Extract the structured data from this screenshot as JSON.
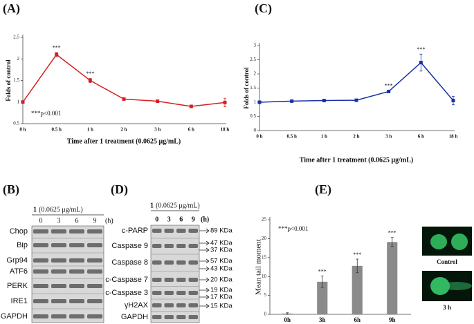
{
  "panel_labels": [
    "(A)",
    "(C)",
    "(B)",
    "(D)",
    "(E)"
  ],
  "chart_data": [
    {
      "type": "line",
      "color": "#d42020",
      "ylabel": "Folds of control",
      "xlabel": "Time after 1 treatment (0.0625 μg/mL)",
      "categories": [
        "0 h",
        "0.5 h",
        "1 h",
        "2 h",
        "3 h",
        "6 h",
        "18 h"
      ],
      "values": [
        1,
        2.1,
        1.5,
        1.07,
        1.02,
        0.9,
        0.99
      ],
      "errors": [
        0.03,
        0.05,
        0.05,
        0.02,
        0.02,
        0.02,
        0.1
      ],
      "ylim": [
        0.5,
        2.5
      ],
      "yticks": [
        0.5,
        1,
        1.5,
        2,
        2.5
      ],
      "annotations": [
        {
          "x": "0.5 h",
          "text": "***"
        },
        {
          "x": "1 h",
          "text": "***"
        }
      ],
      "note": "***p<0.001"
    },
    {
      "type": "line",
      "color": "#1a2fa8",
      "ylabel": "Folds of control",
      "xlabel": "Time after 1 treatment (0.0625 μg/mL)",
      "categories": [
        "0 h",
        "0.5 h",
        "1 h",
        "2 h",
        "3 h",
        "6 h",
        "18 h"
      ],
      "values": [
        1,
        1.04,
        1.06,
        1.07,
        1.38,
        2.4,
        1.06
      ],
      "errors": [
        0.02,
        0.03,
        0.04,
        0.02,
        0.04,
        0.3,
        0.15
      ],
      "ylim": [
        0,
        3
      ],
      "yticks": [
        0,
        0.5,
        1,
        1.5,
        2,
        2.5,
        3
      ],
      "annotations": [
        {
          "x": "3 h",
          "text": "***"
        },
        {
          "x": "6 h",
          "text": "***"
        }
      ]
    },
    {
      "type": "bar",
      "color": "#8a8a8a",
      "ylabel": "Mean tail moment",
      "categories": [
        "0h",
        "3h",
        "6h",
        "9h"
      ],
      "values": [
        0.2,
        8.6,
        12.8,
        19.1
      ],
      "errors": [
        0.2,
        1.5,
        1.8,
        1.2
      ],
      "ylim": [
        0,
        25
      ],
      "yticks": [
        0,
        5,
        10,
        15,
        20,
        25
      ],
      "annotations": [
        {
          "x": "3h",
          "text": "***"
        },
        {
          "x": "6h",
          "text": "***"
        },
        {
          "x": "9h",
          "text": "***"
        }
      ],
      "note": "***p<0.001"
    }
  ],
  "blot_b": {
    "compound": "1",
    "dose": "(0.0625 μg/mL)",
    "times": [
      "0",
      "3",
      "6",
      "9"
    ],
    "unit": "(h)",
    "rows": [
      "Chop",
      "Bip",
      "Grp94",
      "ATF6",
      "PERK",
      "IRE1",
      "GAPDH"
    ]
  },
  "blot_d": {
    "compound": "1",
    "dose": "(0.0625 μg/mL)",
    "times": [
      "0",
      "3",
      "6",
      "9"
    ],
    "unit": "(h)",
    "rows": [
      "c-PARP",
      "Caspase 9",
      "Caspase 8",
      "c-Caspase 7",
      "c-Caspase 3",
      "γH2AX",
      "GAPDH"
    ],
    "sizes": [
      "89 KDa",
      "47 KDa",
      "37 KDa",
      "57 KDa",
      "43 KDa",
      "20 KDa",
      "19 KDa",
      "17 KDa",
      "15 KDa"
    ]
  },
  "comet_images": [
    "Control",
    "3 h"
  ]
}
